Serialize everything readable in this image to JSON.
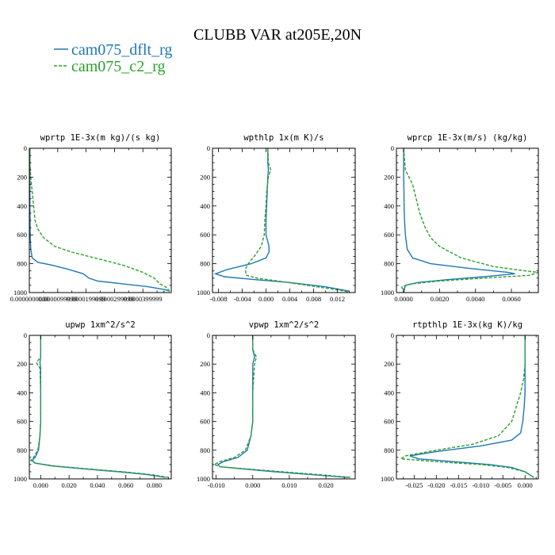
{
  "figure": {
    "title": "CLUBB VAR at205E,20N",
    "legend": [
      {
        "name": "cam075_dflt_rg",
        "color": "#1f77b4",
        "style": "solid"
      },
      {
        "name": "cam075_c2_rg",
        "color": "#2ca02c",
        "style": "dashed"
      }
    ]
  },
  "chart_data": [
    {
      "type": "line",
      "title": "wprtp  1E-3x(m kg)/(s kg)",
      "xlim": [
        0,
        5e-05
      ],
      "ylim": [
        1000,
        0
      ],
      "y_inverted": true,
      "xticks": [
        0,
        1e-05,
        2e-05,
        3e-05,
        4e-05
      ],
      "xtick_labels": [
        "0.0000000000",
        "0.0000099999",
        "0.0000199999",
        "0.0000299999",
        "0.0000399999"
      ],
      "yticks": [
        0,
        200,
        400,
        600,
        800,
        1000
      ],
      "ytick_labels": [
        "0",
        "200",
        "400",
        "600",
        "800",
        "1000"
      ],
      "series": [
        {
          "name": "cam075_dflt_rg",
          "points": [
            [
              2e-07,
              0
            ],
            [
              2e-07,
              200
            ],
            [
              2e-07,
              400
            ],
            [
              3e-07,
              600
            ],
            [
              5e-07,
              700
            ],
            [
              1e-06,
              760
            ],
            [
              3e-06,
              790
            ],
            [
              8e-06,
              810
            ],
            [
              1.4e-05,
              840
            ],
            [
              1.9e-05,
              870
            ],
            [
              2.1e-05,
              900
            ],
            [
              2.4e-05,
              920
            ],
            [
              3.3e-05,
              940
            ],
            [
              4.2e-05,
              960
            ],
            [
              4.8e-05,
              980
            ],
            [
              4.95e-05,
              990
            ]
          ]
        },
        {
          "name": "cam075_c2_rg",
          "points": [
            [
              2e-07,
              0
            ],
            [
              2e-07,
              100
            ],
            [
              5e-07,
              200
            ],
            [
              1e-06,
              300
            ],
            [
              1.5e-06,
              400
            ],
            [
              2e-06,
              500
            ],
            [
              3e-06,
              560
            ],
            [
              5e-06,
              620
            ],
            [
              9e-06,
              680
            ],
            [
              1.5e-05,
              720
            ],
            [
              2.5e-05,
              770
            ],
            [
              3.3e-05,
              810
            ],
            [
              4e-05,
              860
            ],
            [
              4.4e-05,
              900
            ],
            [
              4.6e-05,
              940
            ],
            [
              4.8e-05,
              960
            ],
            [
              4.9e-05,
              980
            ],
            [
              4.7e-05,
              995
            ]
          ]
        }
      ]
    },
    {
      "type": "line",
      "title": "wpthlp  1x(m K)/s",
      "xlim": [
        -0.009,
        0.015
      ],
      "ylim": [
        1000,
        0
      ],
      "y_inverted": true,
      "xticks": [
        -0.008,
        -0.004,
        0,
        0.004,
        0.008,
        0.012
      ],
      "xtick_labels": [
        "-0.008",
        "-0.004",
        "0.000",
        "0.004",
        "0.008",
        "0.012"
      ],
      "yticks": [
        0,
        200,
        400,
        600,
        800,
        1000
      ],
      "ytick_labels": [
        "0",
        "200",
        "400",
        "600",
        "800",
        "1000"
      ],
      "series": [
        {
          "name": "cam075_dflt_rg",
          "points": [
            [
              0.0003,
              0
            ],
            [
              0.0003,
              100
            ],
            [
              0.0004,
              150
            ],
            [
              0.0003,
              200
            ],
            [
              0.0002,
              300
            ],
            [
              0.0001,
              400
            ],
            [
              0.0,
              500
            ],
            [
              0.0,
              600
            ],
            [
              0.0005,
              680
            ],
            [
              0.0005,
              720
            ],
            [
              0.0,
              760
            ],
            [
              -0.0025,
              800
            ],
            [
              -0.0065,
              840
            ],
            [
              -0.0085,
              870
            ],
            [
              -0.007,
              890
            ],
            [
              -0.002,
              910
            ],
            [
              0.004,
              930
            ],
            [
              0.01,
              960
            ],
            [
              0.014,
              990
            ]
          ]
        },
        {
          "name": "cam075_c2_rg",
          "points": [
            [
              0.0003,
              0
            ],
            [
              0.0004,
              100
            ],
            [
              0.0008,
              150
            ],
            [
              0.0004,
              200
            ],
            [
              0.0001,
              300
            ],
            [
              0.0,
              400
            ],
            [
              -0.0002,
              500
            ],
            [
              -0.0003,
              600
            ],
            [
              -0.0008,
              680
            ],
            [
              -0.0018,
              740
            ],
            [
              -0.003,
              800
            ],
            [
              -0.0035,
              840
            ],
            [
              -0.0033,
              880
            ],
            [
              -0.0015,
              900
            ],
            [
              0.002,
              920
            ],
            [
              0.007,
              950
            ],
            [
              0.011,
              975
            ],
            [
              0.014,
              995
            ]
          ]
        }
      ]
    },
    {
      "type": "line",
      "title": "wprcp  1E-3x(m/s) (kg/kg)",
      "xlim": [
        -0.0004,
        0.0075
      ],
      "ylim": [
        1000,
        0
      ],
      "y_inverted": true,
      "xticks": [
        0,
        0.002,
        0.004,
        0.006
      ],
      "xtick_labels": [
        "0.0000",
        "0.0020",
        "0.0040",
        "0.0060"
      ],
      "yticks": [
        0,
        200,
        400,
        600,
        800,
        1000
      ],
      "ytick_labels": [
        "0",
        "200",
        "400",
        "600",
        "800",
        "1000"
      ],
      "series": [
        {
          "name": "cam075_dflt_rg",
          "points": [
            [
              0.0,
              0
            ],
            [
              0.0,
              200
            ],
            [
              2e-05,
              300
            ],
            [
              3e-05,
              400
            ],
            [
              5e-05,
              500
            ],
            [
              0.0001,
              600
            ],
            [
              0.0002,
              700
            ],
            [
              0.0005,
              760
            ],
            [
              0.0015,
              800
            ],
            [
              0.0035,
              830
            ],
            [
              0.0058,
              860
            ],
            [
              0.0062,
              870
            ],
            [
              0.0045,
              890
            ],
            [
              0.0025,
              910
            ],
            [
              0.0008,
              930
            ],
            [
              0.0001,
              950
            ],
            [
              0.0,
              1000
            ]
          ]
        },
        {
          "name": "cam075_c2_rg",
          "points": [
            [
              0.0,
              0
            ],
            [
              0.0001,
              150
            ],
            [
              0.0003,
              200
            ],
            [
              0.0005,
              250
            ],
            [
              0.0007,
              350
            ],
            [
              0.0009,
              450
            ],
            [
              0.0012,
              550
            ],
            [
              0.0015,
              620
            ],
            [
              0.002,
              680
            ],
            [
              0.0032,
              760
            ],
            [
              0.005,
              820
            ],
            [
              0.0068,
              850
            ],
            [
              0.0075,
              860
            ],
            [
              0.007,
              880
            ],
            [
              0.0045,
              900
            ],
            [
              0.002,
              920
            ],
            [
              0.0004,
              940
            ],
            [
              -0.0001,
              960
            ],
            [
              0.0,
              1000
            ]
          ]
        }
      ]
    },
    {
      "type": "line",
      "title": "upwp  1xm^2/s^2",
      "xlim": [
        -0.008,
        0.092
      ],
      "ylim": [
        1000,
        0
      ],
      "y_inverted": true,
      "xticks": [
        0,
        0.02,
        0.04,
        0.06,
        0.08
      ],
      "xtick_labels": [
        "0.000",
        "0.020",
        "0.040",
        "0.060",
        "0.080"
      ],
      "yticks": [
        0,
        200,
        400,
        600,
        800,
        1000
      ],
      "ytick_labels": [
        "0",
        "200",
        "400",
        "600",
        "800",
        "1000"
      ],
      "series": [
        {
          "name": "cam075_dflt_rg",
          "points": [
            [
              0.0,
              0
            ],
            [
              0.0,
              150
            ],
            [
              -0.0005,
              190
            ],
            [
              0.0,
              230
            ],
            [
              0.0,
              400
            ],
            [
              0.0,
              600
            ],
            [
              -0.0005,
              700
            ],
            [
              -0.0015,
              800
            ],
            [
              -0.004,
              850
            ],
            [
              -0.006,
              870
            ],
            [
              -0.004,
              890
            ],
            [
              0.008,
              910
            ],
            [
              0.03,
              930
            ],
            [
              0.055,
              950
            ],
            [
              0.075,
              970
            ],
            [
              0.088,
              990
            ]
          ]
        },
        {
          "name": "cam075_c2_rg",
          "points": [
            [
              0.0,
              0
            ],
            [
              0.0,
              150
            ],
            [
              -0.003,
              190
            ],
            [
              -0.0005,
              230
            ],
            [
              0.0,
              400
            ],
            [
              0.0,
              600
            ],
            [
              -0.0005,
              700
            ],
            [
              -0.002,
              800
            ],
            [
              -0.005,
              850
            ],
            [
              -0.007,
              870
            ],
            [
              -0.004,
              890
            ],
            [
              0.01,
              910
            ],
            [
              0.033,
              930
            ],
            [
              0.058,
              950
            ],
            [
              0.078,
              970
            ],
            [
              0.09,
              990
            ]
          ]
        }
      ]
    },
    {
      "type": "line",
      "title": "vpwp  1xm^2/s^2",
      "xlim": [
        -0.011,
        0.028
      ],
      "ylim": [
        1000,
        0
      ],
      "y_inverted": true,
      "xticks": [
        -0.01,
        0,
        0.01,
        0.02
      ],
      "xtick_labels": [
        "-0.010",
        "0.000",
        "0.010",
        "0.020"
      ],
      "yticks": [
        0,
        200,
        400,
        600,
        800,
        1000
      ],
      "ytick_labels": [
        "0",
        "200",
        "400",
        "600",
        "800",
        "1000"
      ],
      "series": [
        {
          "name": "cam075_dflt_rg",
          "points": [
            [
              0.0,
              0
            ],
            [
              0.0,
              100
            ],
            [
              0.0005,
              150
            ],
            [
              0.0,
              200
            ],
            [
              0.0,
              400
            ],
            [
              0.0,
              600
            ],
            [
              -0.0005,
              700
            ],
            [
              -0.0015,
              800
            ],
            [
              -0.004,
              850
            ],
            [
              -0.008,
              880
            ],
            [
              -0.0095,
              900
            ],
            [
              -0.009,
              915
            ],
            [
              -0.003,
              930
            ],
            [
              0.006,
              950
            ],
            [
              0.016,
              970
            ],
            [
              0.026,
              990
            ]
          ]
        },
        {
          "name": "cam075_c2_rg",
          "points": [
            [
              0.0,
              0
            ],
            [
              0.0,
              100
            ],
            [
              0.001,
              150
            ],
            [
              0.0005,
              200
            ],
            [
              0.0,
              400
            ],
            [
              0.0,
              600
            ],
            [
              -0.0005,
              700
            ],
            [
              -0.002,
              800
            ],
            [
              -0.005,
              850
            ],
            [
              -0.009,
              880
            ],
            [
              -0.0105,
              900
            ],
            [
              -0.009,
              915
            ],
            [
              -0.002,
              930
            ],
            [
              0.008,
              950
            ],
            [
              0.018,
              970
            ],
            [
              0.027,
              990
            ]
          ]
        }
      ]
    },
    {
      "type": "line",
      "title": "rtpthlp  1E-3x(kg K)/kg",
      "xlim": [
        -0.029,
        0.003
      ],
      "ylim": [
        1000,
        0
      ],
      "y_inverted": true,
      "xticks": [
        -0.025,
        -0.02,
        -0.015,
        -0.01,
        -0.005,
        0
      ],
      "xtick_labels": [
        "-0.025",
        "-0.020",
        "-0.015",
        "-0.010",
        "-0.005",
        "0.000"
      ],
      "yticks": [
        0,
        200,
        400,
        600,
        800,
        1000
      ],
      "ytick_labels": [
        "0",
        "200",
        "400",
        "600",
        "800",
        "1000"
      ],
      "series": [
        {
          "name": "cam075_dflt_rg",
          "points": [
            [
              0.0,
              0
            ],
            [
              0.0,
              200
            ],
            [
              0.0,
              300
            ],
            [
              0.0,
              400
            ],
            [
              -0.0002,
              500
            ],
            [
              -0.0005,
              600
            ],
            [
              -0.001,
              680
            ],
            [
              -0.003,
              730
            ],
            [
              -0.01,
              770
            ],
            [
              -0.02,
              810
            ],
            [
              -0.026,
              840
            ],
            [
              -0.024,
              860
            ],
            [
              -0.016,
              880
            ],
            [
              -0.008,
              900
            ],
            [
              -0.003,
              920
            ],
            [
              0.0,
              950
            ],
            [
              0.002,
              990
            ]
          ]
        },
        {
          "name": "cam075_c2_rg",
          "points": [
            [
              0.0,
              0
            ],
            [
              0.0,
              200
            ],
            [
              -0.0003,
              300
            ],
            [
              -0.001,
              400
            ],
            [
              -0.002,
              500
            ],
            [
              -0.003,
              600
            ],
            [
              -0.006,
              700
            ],
            [
              -0.012,
              760
            ],
            [
              -0.02,
              800
            ],
            [
              -0.027,
              840
            ],
            [
              -0.028,
              860
            ],
            [
              -0.02,
              880
            ],
            [
              -0.01,
              900
            ],
            [
              -0.004,
              920
            ],
            [
              0.0,
              950
            ],
            [
              0.002,
              990
            ]
          ]
        }
      ]
    }
  ]
}
